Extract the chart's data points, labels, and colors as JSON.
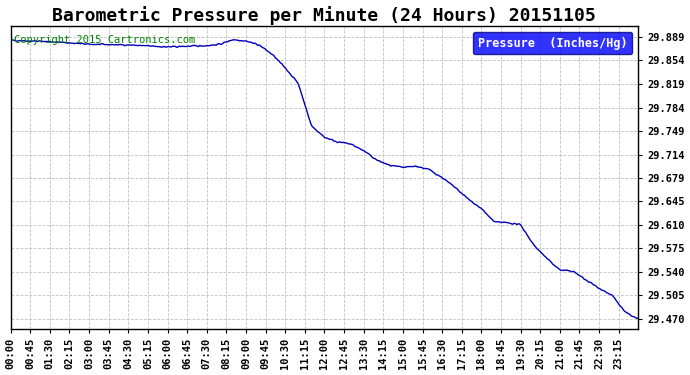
{
  "title": "Barometric Pressure per Minute (24 Hours) 20151105",
  "copyright_text": "Copyright 2015 Cartronics.com",
  "legend_label": "Pressure  (Inches/Hg)",
  "background_color": "#ffffff",
  "plot_bg_color": "#ffffff",
  "line_color": "#0000bb",
  "grid_color": "#bbbbbb",
  "yticks": [
    29.47,
    29.505,
    29.54,
    29.575,
    29.61,
    29.645,
    29.679,
    29.714,
    29.749,
    29.784,
    29.819,
    29.854,
    29.889
  ],
  "ylim": [
    29.455,
    29.905
  ],
  "xtick_labels": [
    "00:00",
    "00:45",
    "01:30",
    "02:15",
    "03:00",
    "03:45",
    "04:30",
    "05:15",
    "06:00",
    "06:45",
    "07:30",
    "08:15",
    "09:00",
    "09:45",
    "10:30",
    "11:15",
    "12:00",
    "12:45",
    "13:30",
    "14:15",
    "15:00",
    "15:45",
    "16:30",
    "17:15",
    "18:00",
    "18:45",
    "19:30",
    "20:15",
    "21:00",
    "21:45",
    "22:30",
    "23:15"
  ],
  "title_fontsize": 13,
  "copyright_fontsize": 7.5,
  "tick_fontsize": 7.5,
  "legend_fontsize": 8.5,
  "line_width": 1.0,
  "key_times": [
    0,
    90,
    180,
    270,
    360,
    450,
    480,
    510,
    540,
    570,
    600,
    630,
    660,
    690,
    720,
    750,
    780,
    810,
    840,
    870,
    900,
    930,
    960,
    990,
    1020,
    1050,
    1080,
    1110,
    1140,
    1170,
    1200,
    1230,
    1260,
    1290,
    1320,
    1350,
    1380,
    1410,
    1439
  ],
  "key_values": [
    29.884,
    29.882,
    29.878,
    29.877,
    29.874,
    29.876,
    29.878,
    29.885,
    29.883,
    29.877,
    29.863,
    29.843,
    29.82,
    29.757,
    29.74,
    29.733,
    29.73,
    29.72,
    29.706,
    29.698,
    29.695,
    29.697,
    29.692,
    29.68,
    29.665,
    29.648,
    29.634,
    29.614,
    29.613,
    29.61,
    29.58,
    29.56,
    29.543,
    29.541,
    29.528,
    29.516,
    29.505,
    29.48,
    29.47
  ]
}
